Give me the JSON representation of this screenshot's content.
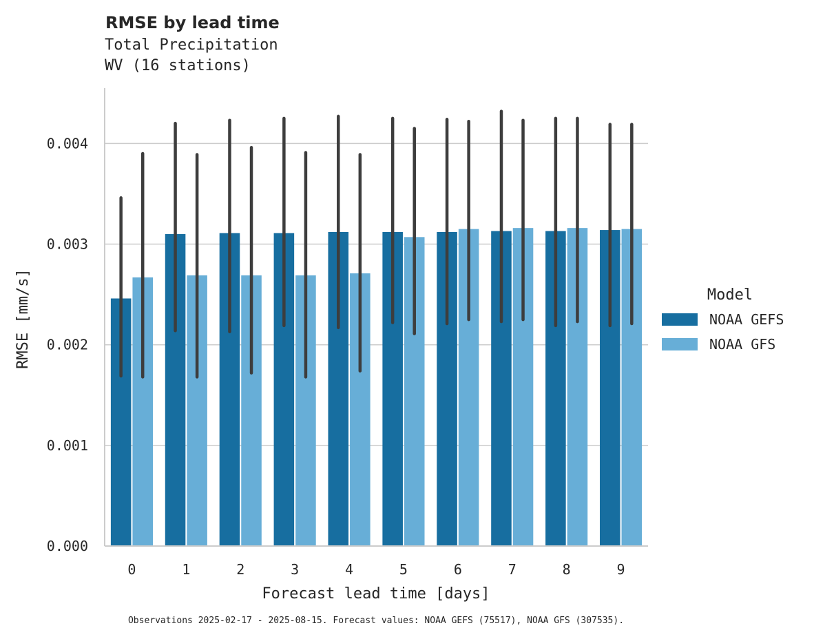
{
  "chart_data": {
    "type": "bar",
    "title": "RMSE by lead time",
    "subtitle_lines": [
      "Total Precipitation",
      "WV (16 stations)"
    ],
    "xlabel": "Forecast lead time [days]",
    "ylabel": "RMSE [mm/s]",
    "categories": [
      "0",
      "1",
      "2",
      "3",
      "4",
      "5",
      "6",
      "7",
      "8",
      "9"
    ],
    "ylim": [
      0,
      0.00455
    ],
    "yticks": [
      0.0,
      0.001,
      0.002,
      0.003,
      0.004
    ],
    "ytick_labels": [
      "0.000",
      "0.001",
      "0.002",
      "0.003",
      "0.004"
    ],
    "grid": "horizontal",
    "legend": {
      "title": "Model",
      "placement": "right"
    },
    "series": [
      {
        "name": "NOAA GEFS",
        "color": "#176ea0",
        "values": [
          0.00246,
          0.0031,
          0.00311,
          0.00311,
          0.00312,
          0.00312,
          0.00312,
          0.00313,
          0.00313,
          0.00314
        ],
        "err_low": [
          0.00169,
          0.00214,
          0.00213,
          0.00219,
          0.00217,
          0.00222,
          0.00221,
          0.00223,
          0.00219,
          0.00219
        ],
        "err_high": [
          0.00346,
          0.0042,
          0.00423,
          0.00425,
          0.00427,
          0.00425,
          0.00424,
          0.00432,
          0.00425,
          0.00419
        ]
      },
      {
        "name": "NOAA GFS",
        "color": "#67aed7",
        "values": [
          0.00267,
          0.00269,
          0.00269,
          0.00269,
          0.00271,
          0.00307,
          0.00315,
          0.00316,
          0.00316,
          0.00315
        ],
        "err_low": [
          0.00168,
          0.00168,
          0.00172,
          0.00168,
          0.00174,
          0.00211,
          0.00225,
          0.00225,
          0.00223,
          0.00221
        ],
        "err_high": [
          0.0039,
          0.00389,
          0.00396,
          0.00391,
          0.00389,
          0.00415,
          0.00422,
          0.00423,
          0.00425,
          0.00419
        ]
      }
    ],
    "footnote": "Observations 2025-02-17 - 2025-08-15. Forecast values: NOAA GEFS (75517), NOAA GFS (307535)."
  }
}
